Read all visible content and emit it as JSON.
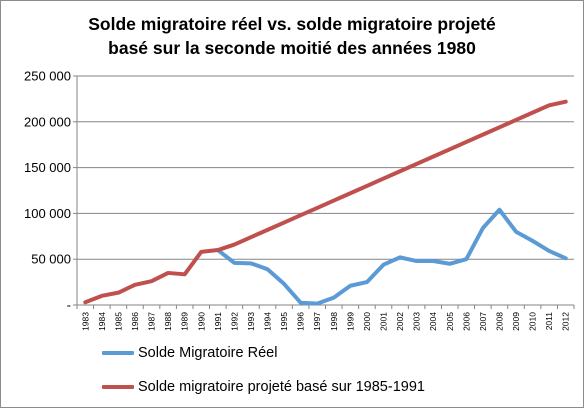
{
  "chart_data": {
    "type": "line",
    "title": "Solde migratoire réel vs. solde migratoire projeté basé sur la seconde moitié des années 1980",
    "title_lines": [
      "Solde migratoire réel vs. solde migratoire projeté",
      "basé sur la seconde moitié des années 1980"
    ],
    "xlabel": "",
    "ylabel": "",
    "x": [
      "1983",
      "1984",
      "1985",
      "1986",
      "1987",
      "1988",
      "1989",
      "1990",
      "1991",
      "1992",
      "1993",
      "1994",
      "1995",
      "1996",
      "1997",
      "1998",
      "1999",
      "2000",
      "2001",
      "2002",
      "2003",
      "2004",
      "2005",
      "2006",
      "2007",
      "2008",
      "2009",
      "2010",
      "2011",
      "2012"
    ],
    "ylim": [
      0,
      250000
    ],
    "yticks": [
      0,
      50000,
      100000,
      150000,
      200000,
      250000
    ],
    "ytick_labels": [
      "-",
      "50 000",
      "100 000",
      "150 000",
      "200 000",
      "250 000"
    ],
    "grid": "horizontal",
    "legend_position": "bottom",
    "series": [
      {
        "name": "Solde Migratoire Réel",
        "color": "#5b9bd5",
        "values": [
          null,
          null,
          null,
          null,
          null,
          null,
          null,
          null,
          60000,
          46000,
          45500,
          39000,
          23000,
          2500,
          1500,
          8000,
          21000,
          25000,
          44000,
          52000,
          48000,
          48000,
          45000,
          50000,
          84000,
          104000,
          80000,
          70000,
          59000,
          51000
        ]
      },
      {
        "name": "Solde migratoire projeté basé sur 1985-1991",
        "color": "#c0504d",
        "values": [
          3000,
          10000,
          13500,
          22000,
          26000,
          35000,
          33500,
          58000,
          60000,
          66000,
          74000,
          82000,
          90000,
          98000,
          106000,
          114000,
          122000,
          130000,
          138000,
          146000,
          154000,
          162000,
          170000,
          178000,
          186000,
          194000,
          202000,
          210000,
          218000,
          222000
        ]
      }
    ]
  }
}
